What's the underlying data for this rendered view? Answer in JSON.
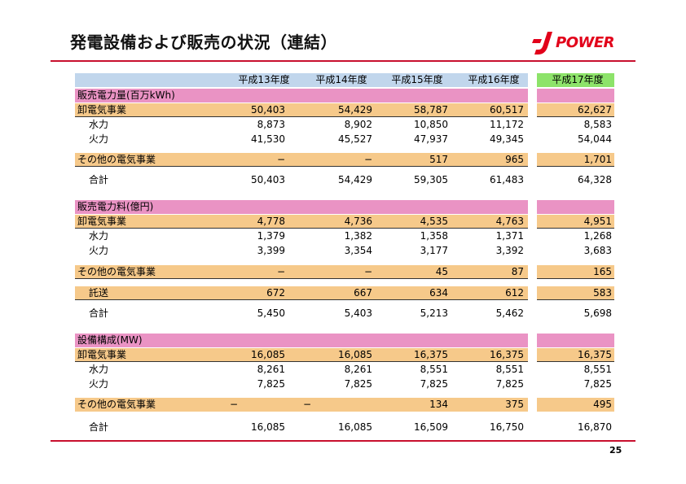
{
  "title": "発電設備および販売の状況（連結）",
  "logo_text": "POWER",
  "colors": {
    "accent": "#c8102e",
    "section": "#ea93c4",
    "category": "#f6c98a",
    "header": "#c1d6ec",
    "highlight": "#8de36a"
  },
  "page_number": "25",
  "columns": [
    "平成13年度",
    "平成14年度",
    "平成15年度",
    "平成16年度",
    "平成17年度"
  ],
  "sections": [
    {
      "header": "販売電力量(百万kWh)",
      "rows": [
        {
          "label": "卸電気事業",
          "values": [
            "50,403",
            "54,429",
            "58,787",
            "60,517",
            "62,627"
          ]
        },
        {
          "label": "水力",
          "values": [
            "8,873",
            "8,902",
            "10,850",
            "11,172",
            "8,583"
          ]
        },
        {
          "label": "火力",
          "values": [
            "41,530",
            "45,527",
            "47,937",
            "49,345",
            "54,044"
          ]
        },
        {
          "label": "その他の電気事業",
          "values": [
            "−",
            "−",
            "517",
            "965",
            "1,701"
          ]
        },
        {
          "label": "合計",
          "values": [
            "50,403",
            "54,429",
            "59,305",
            "61,483",
            "64,328"
          ]
        }
      ]
    },
    {
      "header": "販売電力料(億円)",
      "rows": [
        {
          "label": "卸電気事業",
          "values": [
            "4,778",
            "4,736",
            "4,535",
            "4,763",
            "4,951"
          ]
        },
        {
          "label": "水力",
          "values": [
            "1,379",
            "1,382",
            "1,358",
            "1,371",
            "1,268"
          ]
        },
        {
          "label": "火力",
          "values": [
            "3,399",
            "3,354",
            "3,177",
            "3,392",
            "3,683"
          ]
        },
        {
          "label": "その他の電気事業",
          "values": [
            "−",
            "−",
            "45",
            "87",
            "165"
          ]
        },
        {
          "label": "託送",
          "values": [
            "672",
            "667",
            "634",
            "612",
            "583"
          ]
        },
        {
          "label": "合計",
          "values": [
            "5,450",
            "5,403",
            "5,213",
            "5,462",
            "5,698"
          ]
        }
      ]
    },
    {
      "header": "設備構成(MW)",
      "rows": [
        {
          "label": "卸電気事業",
          "values": [
            "16,085",
            "16,085",
            "16,375",
            "16,375",
            "16,375"
          ]
        },
        {
          "label": "水力",
          "values": [
            "8,261",
            "8,261",
            "8,551",
            "8,551",
            "8,551"
          ]
        },
        {
          "label": "火力",
          "values": [
            "7,825",
            "7,825",
            "7,825",
            "7,825",
            "7,825"
          ]
        },
        {
          "label": "その他の電気事業",
          "values": [
            "−",
            "−",
            "134",
            "375",
            "495"
          ]
        },
        {
          "label": "合計",
          "values": [
            "16,085",
            "16,085",
            "16,509",
            "16,750",
            "16,870"
          ]
        }
      ]
    }
  ]
}
